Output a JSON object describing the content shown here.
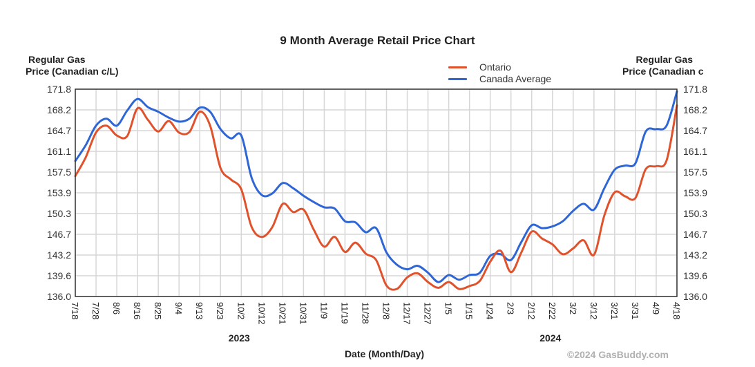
{
  "chart_data": {
    "type": "line",
    "title": "9 Month Average Retail Price Chart",
    "xlabel": "Date (Month/Day)",
    "ylabel_left": "Regular Gas Price (Canadian c/L)",
    "ylabel_right": "Regular Gas Price (Canadian c",
    "ylim": [
      136.0,
      171.8
    ],
    "yticks": [
      "136.0",
      "139.6",
      "143.2",
      "146.7",
      "150.3",
      "153.9",
      "157.5",
      "161.1",
      "164.7",
      "168.2",
      "171.8"
    ],
    "xticks": [
      "7/18",
      "7/28",
      "8/6",
      "8/16",
      "8/25",
      "9/4",
      "9/13",
      "9/23",
      "10/2",
      "10/12",
      "10/21",
      "10/31",
      "11/9",
      "11/19",
      "11/28",
      "12/8",
      "12/17",
      "12/27",
      "1/5",
      "1/15",
      "1/24",
      "2/3",
      "2/12",
      "2/22",
      "3/2",
      "3/12",
      "3/21",
      "3/31",
      "4/9",
      "4/18"
    ],
    "year_labels": [
      {
        "label": "2023",
        "at_tick": "10/2"
      },
      {
        "label": "2024",
        "at_tick": "2/22"
      }
    ],
    "grid": true,
    "legend_position": "top-right",
    "x_index_note": "x values are positions in tick units (0 = 7/18, 29 = 4/18)",
    "series": [
      {
        "name": "Ontario",
        "color": "#e0522b",
        "x": [
          0,
          0.5,
          1,
          1.5,
          2,
          2.5,
          3,
          3.5,
          4,
          4.5,
          5,
          5.5,
          6,
          6.5,
          7,
          7.5,
          8,
          8.5,
          9,
          9.5,
          10,
          10.5,
          11,
          11.5,
          12,
          12.5,
          13,
          13.5,
          14,
          14.5,
          15,
          15.5,
          16,
          16.5,
          17,
          17.5,
          18,
          18.5,
          19,
          19.5,
          20,
          20.5,
          21,
          21.5,
          22,
          22.5,
          23,
          23.5,
          24,
          24.5,
          25,
          25.5,
          26,
          26.5,
          27,
          27.5,
          28,
          28.5,
          29
        ],
        "values": [
          156.8,
          160.0,
          164.3,
          165.5,
          163.8,
          163.7,
          168.5,
          166.5,
          164.5,
          166.3,
          164.3,
          164.4,
          167.9,
          165.5,
          158.2,
          156.2,
          154.5,
          148.0,
          146.3,
          148.0,
          152.0,
          150.6,
          151.0,
          147.5,
          144.6,
          146.3,
          143.7,
          145.3,
          143.4,
          142.3,
          137.9,
          137.3,
          139.3,
          140.0,
          138.5,
          137.5,
          138.5,
          137.3,
          137.8,
          138.7,
          142.0,
          143.9,
          140.2,
          143.6,
          147.2,
          146.0,
          145.0,
          143.3,
          144.3,
          145.7,
          143.2,
          150.0,
          154.0,
          153.3,
          153.0,
          158.0,
          158.5,
          159.5,
          169.0
        ]
      },
      {
        "name": "Canada Average",
        "color": "#2f66d6",
        "x": [
          0,
          0.5,
          1,
          1.5,
          2,
          2.5,
          3,
          3.5,
          4,
          4.5,
          5,
          5.5,
          6,
          6.5,
          7,
          7.5,
          8,
          8.5,
          9,
          9.5,
          10,
          10.5,
          11,
          11.5,
          12,
          12.5,
          13,
          13.5,
          14,
          14.5,
          15,
          15.5,
          16,
          16.5,
          17,
          17.5,
          18,
          18.5,
          19,
          19.5,
          20,
          20.5,
          21,
          21.5,
          22,
          22.5,
          23,
          23.5,
          24,
          24.5,
          25,
          25.5,
          26,
          26.5,
          27,
          27.5,
          28,
          28.5,
          29
        ],
        "values": [
          159.4,
          162.1,
          165.5,
          166.7,
          165.5,
          168.1,
          170.1,
          168.7,
          167.9,
          166.9,
          166.2,
          166.7,
          168.6,
          167.9,
          164.9,
          163.3,
          163.8,
          156.5,
          153.5,
          153.8,
          155.6,
          154.7,
          153.4,
          152.3,
          151.4,
          151.2,
          149.0,
          148.8,
          147.1,
          147.8,
          143.6,
          141.5,
          140.7,
          141.3,
          140.1,
          138.5,
          139.7,
          138.9,
          139.7,
          140.1,
          143.0,
          143.3,
          142.3,
          145.4,
          148.3,
          147.8,
          148.1,
          149.0,
          150.8,
          152.0,
          151.0,
          154.7,
          157.9,
          158.6,
          159.0,
          164.5,
          164.9,
          165.5,
          171.4
        ]
      }
    ]
  },
  "copyright": "©2024 GasBuddy.com"
}
